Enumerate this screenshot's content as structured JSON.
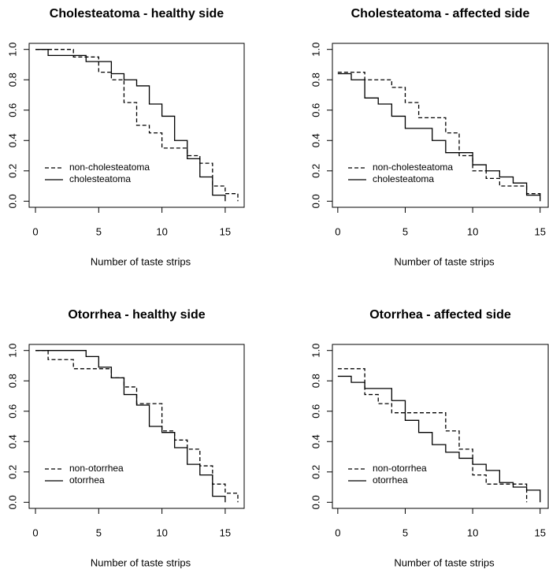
{
  "chart_data": [
    {
      "type": "step",
      "title": "Cholesteatoma - healthy side",
      "x_label": "Number of taste strips",
      "xlim": [
        -0.5,
        16.5
      ],
      "ylim": [
        -0.04,
        1.04
      ],
      "xticks": [
        0,
        5,
        10,
        15
      ],
      "yticks": [
        {
          "value": 0,
          "label": "0.0"
        },
        {
          "value": 0.2,
          "label": "0.2"
        },
        {
          "value": 0.4,
          "label": "0.4"
        },
        {
          "value": 0.6,
          "label": "0.6"
        },
        {
          "value": 0.8,
          "label": "0.8"
        },
        {
          "value": 1,
          "label": "1.0"
        }
      ],
      "legend": "bottomleft",
      "series": [
        {
          "name": "non-cholesteatoma",
          "color": "#000000",
          "dash": "dashed",
          "x": [
            0,
            3,
            5,
            6,
            7,
            8,
            9,
            10,
            12,
            13,
            14,
            15,
            16
          ],
          "values": [
            1,
            0.95,
            0.85,
            0.8,
            0.65,
            0.5,
            0.45,
            0.35,
            0.3,
            0.25,
            0.1,
            0.05,
            0
          ]
        },
        {
          "name": "cholesteatoma",
          "color": "#000000",
          "dash": "solid",
          "x": [
            0,
            1,
            4,
            6,
            7,
            8,
            9,
            10,
            11,
            12,
            13,
            14,
            15
          ],
          "values": [
            1,
            0.96,
            0.92,
            0.84,
            0.8,
            0.76,
            0.64,
            0.56,
            0.4,
            0.28,
            0.16,
            0.04,
            0
          ]
        }
      ]
    },
    {
      "type": "step",
      "title": "Cholesteatoma - affected side",
      "x_label": "Number of taste strips",
      "xlim": [
        -0.4,
        15.6
      ],
      "ylim": [
        -0.04,
        1.04
      ],
      "xticks": [
        0,
        5,
        10,
        15
      ],
      "yticks": [
        {
          "value": 0,
          "label": "0.0"
        },
        {
          "value": 0.2,
          "label": "0.2"
        },
        {
          "value": 0.4,
          "label": "0.4"
        },
        {
          "value": 0.6,
          "label": "0.6"
        },
        {
          "value": 0.8,
          "label": "0.8"
        },
        {
          "value": 1,
          "label": "1.0"
        }
      ],
      "legend": "bottomleft",
      "series": [
        {
          "name": "non-cholesteatoma",
          "color": "#000000",
          "dash": "dashed",
          "x": [
            0,
            2,
            4,
            5,
            6,
            8,
            9,
            10,
            11,
            12,
            14,
            15
          ],
          "values": [
            0.85,
            0.8,
            0.75,
            0.65,
            0.55,
            0.45,
            0.3,
            0.2,
            0.15,
            0.1,
            0.05,
            0.02
          ]
        },
        {
          "name": "cholesteatoma",
          "color": "#000000",
          "dash": "solid",
          "x": [
            0,
            1,
            2,
            3,
            4,
            5,
            7,
            8,
            10,
            11,
            12,
            13,
            14,
            15
          ],
          "values": [
            0.84,
            0.8,
            0.68,
            0.64,
            0.56,
            0.48,
            0.4,
            0.32,
            0.24,
            0.2,
            0.16,
            0.12,
            0.04,
            0
          ]
        }
      ]
    },
    {
      "type": "step",
      "title": "Otorrhea - healthy side",
      "x_label": "Number of taste strips",
      "xlim": [
        -0.5,
        16.5
      ],
      "ylim": [
        -0.04,
        1.04
      ],
      "xticks": [
        0,
        5,
        10,
        15
      ],
      "yticks": [
        {
          "value": 0,
          "label": "0.0"
        },
        {
          "value": 0.2,
          "label": "0.2"
        },
        {
          "value": 0.4,
          "label": "0.4"
        },
        {
          "value": 0.6,
          "label": "0.6"
        },
        {
          "value": 0.8,
          "label": "0.8"
        },
        {
          "value": 1,
          "label": "1.0"
        }
      ],
      "legend": "bottomleft",
      "series": [
        {
          "name": "non-otorrhea",
          "color": "#000000",
          "dash": "dashed",
          "x": [
            0,
            1,
            3,
            6,
            7,
            8,
            10,
            11,
            12,
            13,
            14,
            15,
            16
          ],
          "values": [
            1,
            0.94,
            0.88,
            0.82,
            0.76,
            0.65,
            0.47,
            0.41,
            0.35,
            0.24,
            0.12,
            0.06,
            0
          ]
        },
        {
          "name": "otorrhea",
          "color": "#000000",
          "dash": "solid",
          "x": [
            0,
            4,
            5,
            6,
            7,
            8,
            9,
            10,
            11,
            12,
            13,
            14,
            15
          ],
          "values": [
            1,
            0.96,
            0.89,
            0.82,
            0.71,
            0.64,
            0.5,
            0.46,
            0.36,
            0.25,
            0.18,
            0.04,
            0
          ]
        }
      ]
    },
    {
      "type": "step",
      "title": "Otorrhea - affected side",
      "x_label": "Number of taste strips",
      "xlim": [
        -0.4,
        15.6
      ],
      "ylim": [
        -0.04,
        1.04
      ],
      "xticks": [
        0,
        5,
        10,
        15
      ],
      "yticks": [
        {
          "value": 0,
          "label": "0.0"
        },
        {
          "value": 0.2,
          "label": "0.2"
        },
        {
          "value": 0.4,
          "label": "0.4"
        },
        {
          "value": 0.6,
          "label": "0.6"
        },
        {
          "value": 0.8,
          "label": "0.8"
        },
        {
          "value": 1,
          "label": "1.0"
        }
      ],
      "legend": "bottomleft",
      "series": [
        {
          "name": "non-otorrhea",
          "color": "#000000",
          "dash": "dashed",
          "x": [
            0,
            2,
            3,
            4,
            5,
            8,
            9,
            10,
            11,
            13,
            14
          ],
          "values": [
            0.88,
            0.71,
            0.65,
            0.59,
            0.59,
            0.47,
            0.35,
            0.18,
            0.12,
            0.12,
            0
          ]
        },
        {
          "name": "otorrhea",
          "color": "#000000",
          "dash": "solid",
          "x": [
            0,
            1,
            2,
            4,
            5,
            6,
            7,
            8,
            9,
            10,
            11,
            12,
            13,
            14,
            15
          ],
          "values": [
            0.83,
            0.79,
            0.75,
            0.67,
            0.54,
            0.46,
            0.38,
            0.33,
            0.29,
            0.25,
            0.21,
            0.13,
            0.1,
            0.08,
            0
          ]
        }
      ]
    }
  ]
}
